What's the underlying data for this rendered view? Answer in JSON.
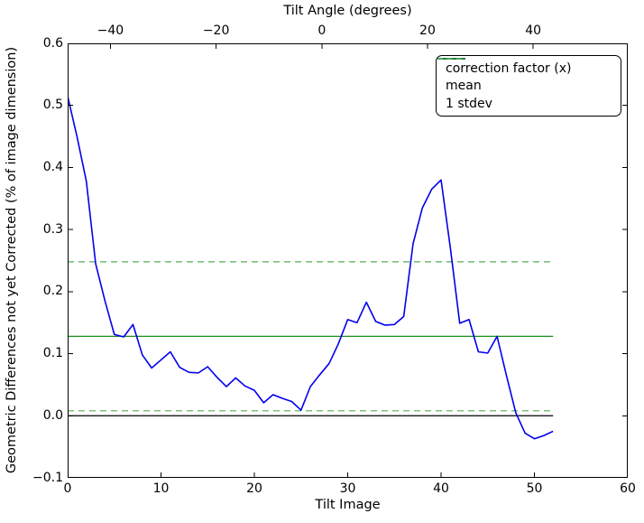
{
  "chart_data": {
    "type": "line",
    "title": "",
    "top_axis": {
      "label": "Tilt Angle (degrees)",
      "range": [
        -48.1,
        57.9
      ],
      "ticks": [
        {
          "value": -40,
          "label": "−40"
        },
        {
          "value": -20,
          "label": "−20"
        },
        {
          "value": 0,
          "label": "0"
        },
        {
          "value": 20,
          "label": "20"
        },
        {
          "value": 40,
          "label": "40"
        }
      ]
    },
    "bottom_axis": {
      "label": "Tilt Image",
      "range": [
        0,
        60
      ],
      "ticks": [
        {
          "value": 0,
          "label": "0"
        },
        {
          "value": 10,
          "label": "10"
        },
        {
          "value": 20,
          "label": "20"
        },
        {
          "value": 30,
          "label": "30"
        },
        {
          "value": 40,
          "label": "40"
        },
        {
          "value": 50,
          "label": "50"
        },
        {
          "value": 60,
          "label": "60"
        }
      ]
    },
    "y_axis": {
      "label": "Geometric Differences not yet Corrected (% of image dimension)",
      "range": [
        -0.1,
        0.6
      ],
      "ticks": [
        {
          "value": 0.6,
          "label": "0.6"
        },
        {
          "value": 0.5,
          "label": "0.5"
        },
        {
          "value": 0.4,
          "label": "0.4"
        },
        {
          "value": 0.3,
          "label": "0.3"
        },
        {
          "value": 0.2,
          "label": "0.2"
        },
        {
          "value": 0.1,
          "label": "0.1"
        },
        {
          "value": 0.0,
          "label": "0.0"
        },
        {
          "value": -0.1,
          "label": "−0.1"
        }
      ]
    },
    "series": [
      {
        "name": "correction factor (x)",
        "color": "#0000ee",
        "style": "solid",
        "x_start": 0,
        "x_step": 1,
        "values": [
          0.515,
          0.45,
          0.378,
          0.245,
          0.185,
          0.131,
          0.127,
          0.147,
          0.098,
          0.077,
          0.09,
          0.103,
          0.078,
          0.07,
          0.069,
          0.079,
          0.062,
          0.047,
          0.061,
          0.048,
          0.041,
          0.021,
          0.034,
          0.028,
          0.023,
          0.009,
          0.047,
          0.066,
          0.084,
          0.116,
          0.155,
          0.15,
          0.183,
          0.152,
          0.146,
          0.147,
          0.16,
          0.277,
          0.335,
          0.365,
          0.38,
          0.27,
          0.149,
          0.155,
          0.103,
          0.101,
          0.128,
          0.065,
          0.005,
          -0.028,
          -0.037,
          -0.032,
          -0.025
        ]
      }
    ],
    "reference_lines": [
      {
        "id": "zero-line",
        "name": "zero",
        "value": 0.0,
        "color": "#000000",
        "style": "solid",
        "x_range": [
          0,
          52
        ]
      },
      {
        "id": "mean-line",
        "name": "mean",
        "value": 0.128,
        "color": "#008000",
        "style": "solid",
        "x_range": [
          0,
          52
        ]
      },
      {
        "id": "stdev-upper-line",
        "name": "+1 stdev",
        "value": 0.248,
        "color": "#54ae54",
        "style": "dashed",
        "x_range": [
          0,
          52
        ]
      },
      {
        "id": "stdev-lower-line",
        "name": "-1 stdev",
        "value": 0.008,
        "color": "#54ae54",
        "style": "dashed",
        "x_range": [
          0,
          52
        ]
      }
    ],
    "stats": {
      "mean": 0.128,
      "stdev": 0.12
    },
    "legend": {
      "position": "upper right",
      "entries": [
        {
          "label": "correction factor (x)",
          "color": "#0000ee",
          "style": "solid"
        },
        {
          "label": "mean",
          "color": "#008000",
          "style": "solid"
        },
        {
          "label": "1 stdev",
          "color": "#54ae54",
          "style": "dashed"
        }
      ]
    },
    "grid": false,
    "background": "#ffffff"
  }
}
